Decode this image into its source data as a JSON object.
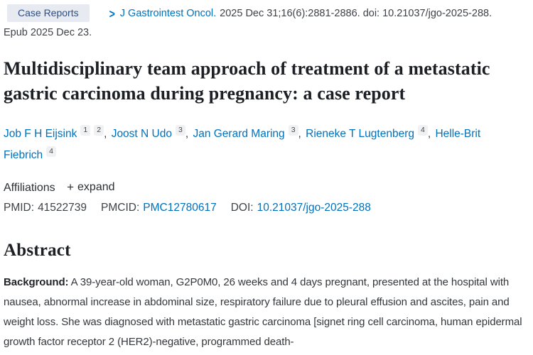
{
  "header": {
    "publication_type": "Case Reports",
    "chevron_icon": ">",
    "journal": "J Gastrointest Oncol.",
    "citation_details": "2025 Dec 31;16(6):2881-2886. doi: 10.21037/jgo-2025-288.",
    "epub": "Epub 2025 Dec 23."
  },
  "title": "Multidisciplinary team approach of treatment of a metastatic gastric carcinoma during pregnancy: a case report",
  "authors": [
    {
      "name": "Job F H Eijsink",
      "sups": [
        "1",
        "2"
      ],
      "sep": ","
    },
    {
      "name": "Joost N Udo",
      "sups": [
        "3"
      ],
      "sep": ","
    },
    {
      "name": "Jan Gerard Maring",
      "sups": [
        "3"
      ],
      "sep": ","
    },
    {
      "name": "Rieneke T Lugtenberg",
      "sups": [
        "4"
      ],
      "sep": ","
    },
    {
      "name": "Helle-Brit Fiebrich",
      "sups": [
        "4"
      ],
      "sep": ""
    }
  ],
  "affiliations": {
    "label": "Affiliations",
    "expand_icon": "+",
    "expand_label": "expand"
  },
  "identifiers": {
    "pmid_label": "PMID:",
    "pmid_value": "41522739",
    "pmcid_label": "PMCID:",
    "pmcid_value": "PMC12780617",
    "doi_label": "DOI:",
    "doi_value": "10.21037/jgo-2025-288"
  },
  "abstract": {
    "heading": "Abstract",
    "background_label": "Background:",
    "background_text": "A 39-year-old woman, G2P0M0, 26 weeks and 4 days pregnant, presented at the hospital with nausea, abnormal increase in abdominal size, respiratory failure due to pleural effusion and ascites, pain and weight loss. She was diagnosed with metastatic gastric carcinoma [signet ring cell carcinoma, human epidermal growth factor receptor 2 (HER2)-negative, programmed death-"
  },
  "colors": {
    "link_blue": "#0071bc",
    "badge_background": "#e7ebf1",
    "badge_text": "#2e4e7e",
    "title_text": "#1c2024",
    "body_text": "#33373b"
  }
}
